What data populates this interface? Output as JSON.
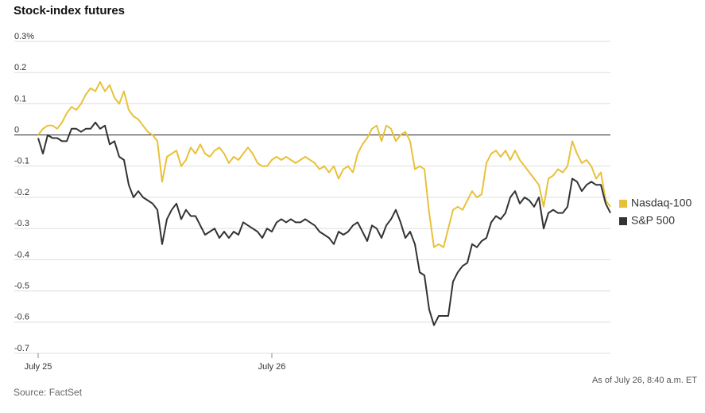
{
  "chart_data": {
    "type": "line",
    "title": "Stock-index futures",
    "categories": [
      "July 25",
      null,
      null,
      null,
      null,
      null,
      null,
      null,
      null,
      null,
      null,
      null,
      null,
      null,
      null,
      null,
      null,
      null,
      null,
      null,
      null,
      null,
      null,
      null,
      null,
      null,
      null,
      null,
      null,
      null,
      null,
      null,
      null,
      null,
      null,
      null,
      null,
      null,
      null,
      null,
      null,
      null,
      null,
      null,
      null,
      null,
      null,
      null,
      null,
      "July 26",
      null,
      null,
      null,
      null,
      null,
      null,
      null,
      null,
      null,
      null,
      null,
      null,
      null,
      null,
      null,
      null,
      null,
      null,
      null,
      null,
      null,
      null,
      null,
      null,
      null,
      null,
      null,
      null,
      null,
      null,
      null,
      null,
      null,
      null,
      null,
      null,
      null,
      null,
      null,
      null,
      null,
      null,
      null,
      null,
      null,
      null,
      null,
      null,
      null,
      null,
      null,
      null,
      null,
      null,
      null,
      null,
      null,
      null,
      null,
      null,
      null,
      null,
      null,
      null,
      null,
      null,
      null,
      null,
      null,
      null,
      null
    ],
    "series": [
      {
        "name": "Nasdaq-100",
        "color": "#e8c13a",
        "values": [
          0.0,
          0.02,
          0.03,
          0.03,
          0.02,
          0.04,
          0.07,
          0.09,
          0.08,
          0.1,
          0.13,
          0.15,
          0.14,
          0.17,
          0.14,
          0.16,
          0.12,
          0.1,
          0.14,
          0.08,
          0.06,
          0.05,
          0.03,
          0.01,
          0.0,
          -0.02,
          -0.15,
          -0.07,
          -0.06,
          -0.05,
          -0.1,
          -0.08,
          -0.04,
          -0.06,
          -0.03,
          -0.06,
          -0.07,
          -0.05,
          -0.04,
          -0.06,
          -0.09,
          -0.07,
          -0.08,
          -0.06,
          -0.04,
          -0.06,
          -0.09,
          -0.1,
          -0.1,
          -0.08,
          -0.07,
          -0.08,
          -0.07,
          -0.08,
          -0.09,
          -0.08,
          -0.07,
          -0.08,
          -0.09,
          -0.11,
          -0.1,
          -0.12,
          -0.1,
          -0.14,
          -0.11,
          -0.1,
          -0.12,
          -0.06,
          -0.03,
          -0.01,
          0.02,
          0.03,
          -0.02,
          0.03,
          0.02,
          -0.02,
          0.0,
          0.01,
          -0.02,
          -0.11,
          -0.1,
          -0.11,
          -0.25,
          -0.36,
          -0.35,
          -0.36,
          -0.3,
          -0.24,
          -0.23,
          -0.24,
          -0.21,
          -0.18,
          -0.2,
          -0.19,
          -0.09,
          -0.06,
          -0.05,
          -0.07,
          -0.05,
          -0.08,
          -0.05,
          -0.08,
          -0.1,
          -0.12,
          -0.14,
          -0.16,
          -0.23,
          -0.14,
          -0.13,
          -0.11,
          -0.12,
          -0.1,
          -0.02,
          -0.06,
          -0.09,
          -0.08,
          -0.1,
          -0.14,
          -0.12,
          -0.21,
          -0.23
        ]
      },
      {
        "name": "S&P 500",
        "color": "#333333",
        "values": [
          -0.01,
          -0.06,
          0.0,
          -0.01,
          -0.01,
          -0.02,
          -0.02,
          0.02,
          0.02,
          0.01,
          0.02,
          0.02,
          0.04,
          0.02,
          0.03,
          -0.03,
          -0.02,
          -0.07,
          -0.08,
          -0.16,
          -0.2,
          -0.18,
          -0.2,
          -0.21,
          -0.22,
          -0.24,
          -0.35,
          -0.27,
          -0.24,
          -0.22,
          -0.27,
          -0.24,
          -0.26,
          -0.26,
          -0.29,
          -0.32,
          -0.31,
          -0.3,
          -0.33,
          -0.31,
          -0.33,
          -0.31,
          -0.32,
          -0.28,
          -0.29,
          -0.3,
          -0.31,
          -0.33,
          -0.3,
          -0.31,
          -0.28,
          -0.27,
          -0.28,
          -0.27,
          -0.28,
          -0.28,
          -0.27,
          -0.28,
          -0.29,
          -0.31,
          -0.32,
          -0.33,
          -0.35,
          -0.31,
          -0.32,
          -0.31,
          -0.29,
          -0.28,
          -0.31,
          -0.34,
          -0.29,
          -0.3,
          -0.33,
          -0.29,
          -0.27,
          -0.24,
          -0.28,
          -0.33,
          -0.31,
          -0.35,
          -0.44,
          -0.45,
          -0.56,
          -0.61,
          -0.58,
          -0.58,
          -0.58,
          -0.47,
          -0.44,
          -0.42,
          -0.41,
          -0.35,
          -0.36,
          -0.34,
          -0.33,
          -0.28,
          -0.26,
          -0.27,
          -0.25,
          -0.2,
          -0.18,
          -0.22,
          -0.2,
          -0.21,
          -0.23,
          -0.2,
          -0.3,
          -0.25,
          -0.24,
          -0.25,
          -0.25,
          -0.23,
          -0.14,
          -0.15,
          -0.18,
          -0.16,
          -0.15,
          -0.16,
          -0.16,
          -0.22,
          -0.25
        ]
      }
    ],
    "ylim": [
      -0.7,
      0.3
    ],
    "yticks": [
      {
        "value": 0.3,
        "label": "0.3%"
      },
      0.2,
      0.1,
      0,
      -0.1,
      -0.2,
      -0.3,
      -0.4,
      -0.5,
      -0.6,
      -0.7
    ],
    "grid": true,
    "legend": "right",
    "note": "As of July 26, 8:40 a.m. ET",
    "source": "Source: FactSet"
  }
}
